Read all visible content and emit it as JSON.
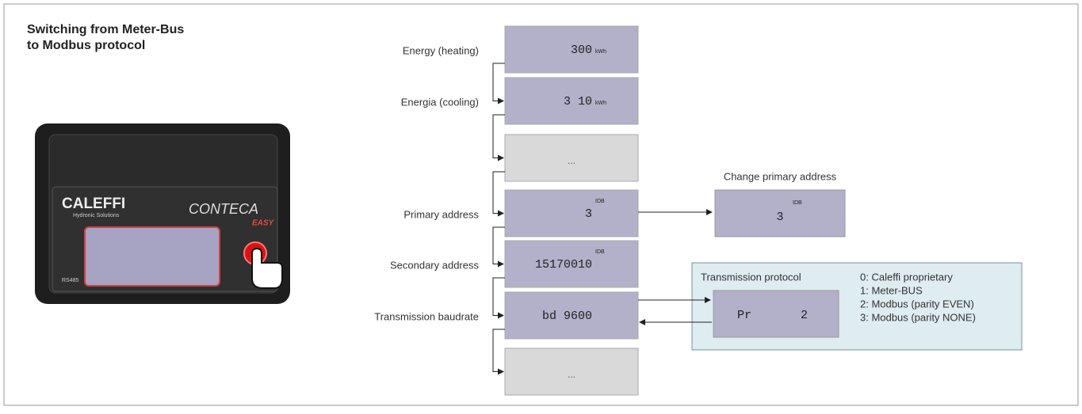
{
  "header": {
    "title_lines": [
      "Switching from Meter-Bus",
      "to Modbus protocol"
    ]
  },
  "device": {
    "brand": "CALEFFI",
    "tagline": "Hydronic Solutions",
    "product": "CONTECA",
    "product_sub": "EASY",
    "port": "RS485"
  },
  "steps": [
    {
      "label": "Energy (heating)",
      "display": "300",
      "unit": "kWh",
      "active": true
    },
    {
      "label": "Energia (cooling)",
      "display": "3 10",
      "unit": "kWh",
      "active": true
    },
    {
      "label": null,
      "display": "...",
      "unit": null,
      "active": false
    },
    {
      "label": "Primary address",
      "display": "3",
      "unit": "IDB",
      "active": true
    },
    {
      "label": "Secondary address",
      "display": "15170010",
      "unit": "IDB",
      "active": true
    },
    {
      "label": "Transmission baudrate",
      "display": "bd   9600",
      "unit": null,
      "active": true
    },
    {
      "label": null,
      "display": "...",
      "unit": null,
      "active": false
    }
  ],
  "change_primary": {
    "title": "Change primary address",
    "display": "3",
    "unit": "IDB"
  },
  "transmission": {
    "title": "Transmission protocol",
    "display_left": "Pr",
    "display_right": "2",
    "options": [
      "0: Caleffi proprietary",
      "1: Meter-BUS",
      "2: Modbus (parity EVEN)",
      "3: Modbus (parity NONE)"
    ]
  }
}
